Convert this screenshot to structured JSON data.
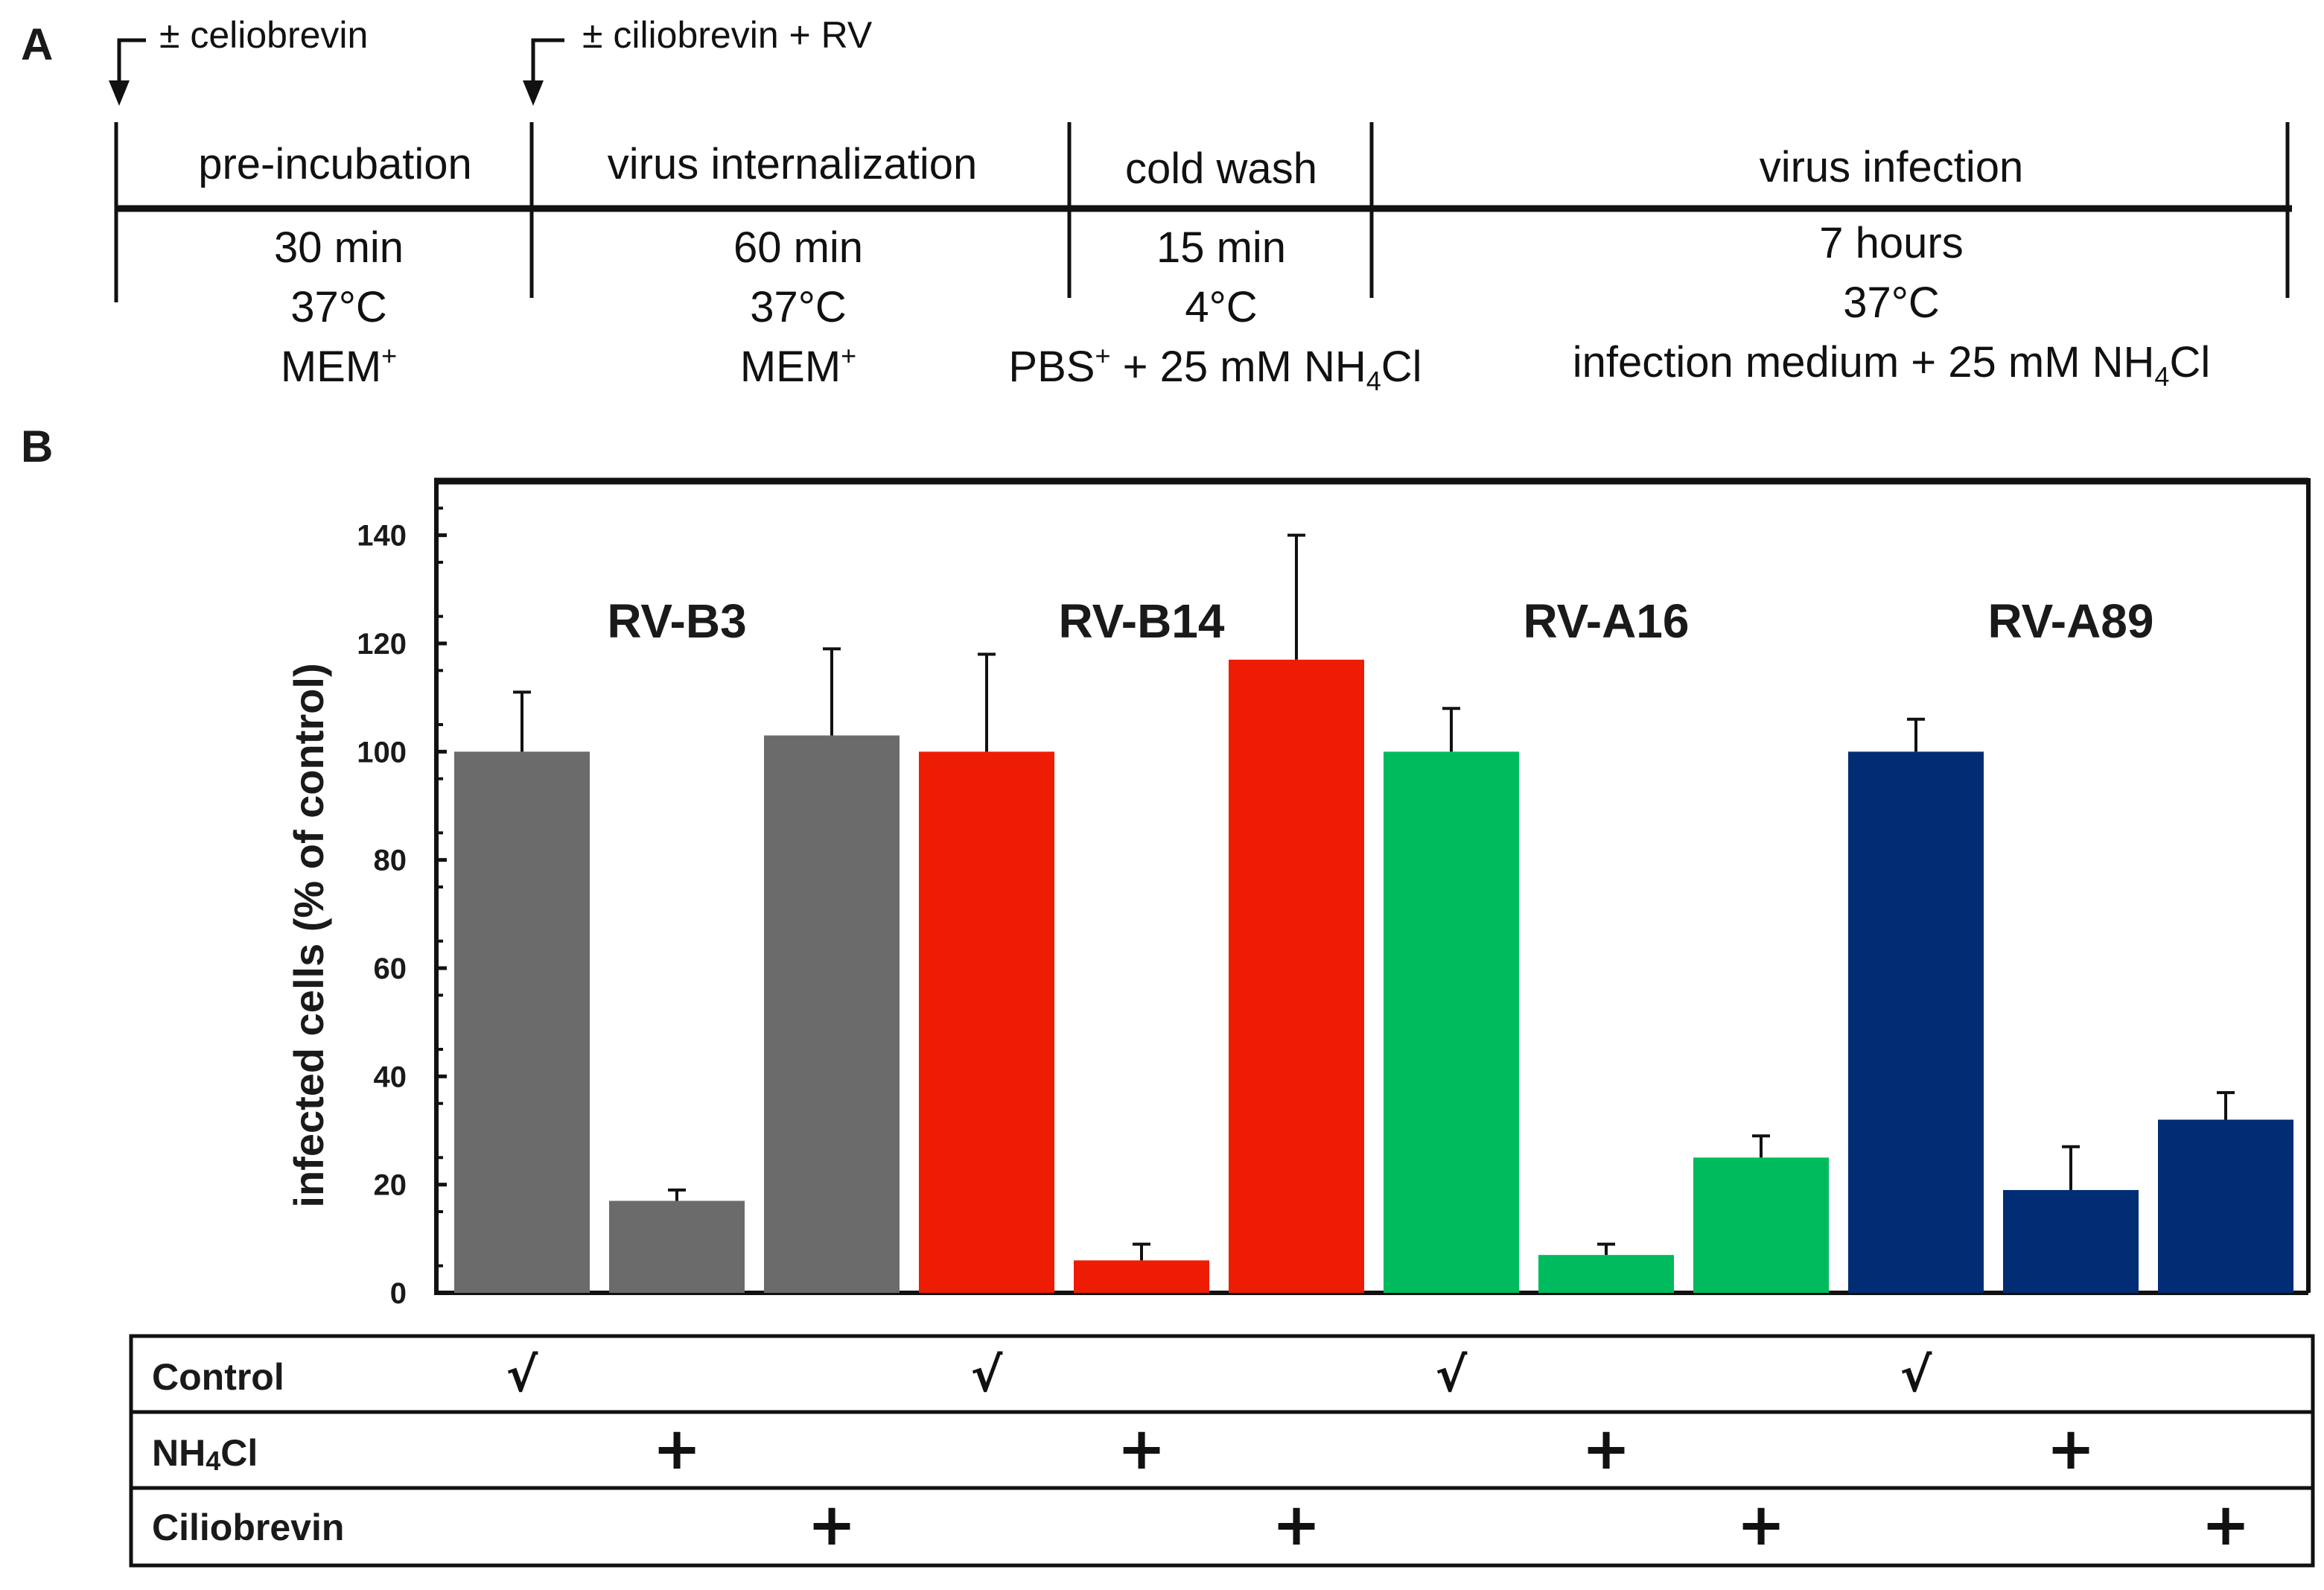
{
  "panel_a": {
    "letter": "A",
    "arrows": [
      {
        "label": "± celiobrevin"
      },
      {
        "label": "± ciliobrevin + RV"
      }
    ],
    "stages": [
      {
        "title": "pre-incubation",
        "time": "30 min",
        "temp": "37°C",
        "medium": "MEM",
        "medium_sup": "+",
        "medium_tail": "",
        "medium_sub": "",
        "medium_end": ""
      },
      {
        "title": "virus internalization",
        "time": "60 min",
        "temp": "37°C",
        "medium": "MEM",
        "medium_sup": "+",
        "medium_tail": "",
        "medium_sub": "",
        "medium_end": ""
      },
      {
        "title": "cold wash",
        "time": "15 min",
        "temp": "4°C",
        "medium": "PBS",
        "medium_sup": "+",
        "medium_tail": " + 25 mM NH",
        "medium_sub": "4",
        "medium_end": "Cl"
      },
      {
        "title": "virus infection",
        "time": "7 hours",
        "temp": "37°C",
        "medium": "infection medium + 25 mM NH",
        "medium_sup": "",
        "medium_tail": "",
        "medium_sub": "4",
        "medium_end": "Cl"
      }
    ]
  },
  "panel_b": {
    "letter": "B",
    "colors": {
      "RV-B3": "#6b6b6b",
      "RV-B14": "#ee1c03",
      "RV-A16": "#00bb5e",
      "RV-A89": "#002d74"
    },
    "treatment_rows": [
      {
        "name": "Control",
        "sub": "",
        "tail": "",
        "mark": "√",
        "slot": 0
      },
      {
        "name": "NH",
        "sub": "4",
        "tail": "Cl",
        "mark": "+",
        "slot": 1
      },
      {
        "name": "Ciliobrevin",
        "sub": "",
        "tail": "",
        "mark": "+",
        "slot": 2
      }
    ]
  },
  "chart_data": {
    "type": "bar",
    "title": "",
    "xlabel": "",
    "ylabel": "infected cells (% of control)",
    "ylim": [
      0,
      150
    ],
    "yticks": [
      0,
      20,
      40,
      60,
      80,
      100,
      120,
      140
    ],
    "categories": [
      "Control",
      "NH4Cl",
      "Ciliobrevin"
    ],
    "series": [
      {
        "name": "RV-B3",
        "values": [
          100,
          17,
          103
        ],
        "errors": [
          11,
          2,
          16
        ]
      },
      {
        "name": "RV-B14",
        "values": [
          100,
          6,
          117
        ],
        "errors": [
          18,
          3,
          23
        ]
      },
      {
        "name": "RV-A16",
        "values": [
          100,
          7,
          25
        ],
        "errors": [
          8,
          2,
          4
        ]
      },
      {
        "name": "RV-A89",
        "values": [
          100,
          19,
          32
        ],
        "errors": [
          6,
          8,
          5
        ]
      }
    ]
  }
}
